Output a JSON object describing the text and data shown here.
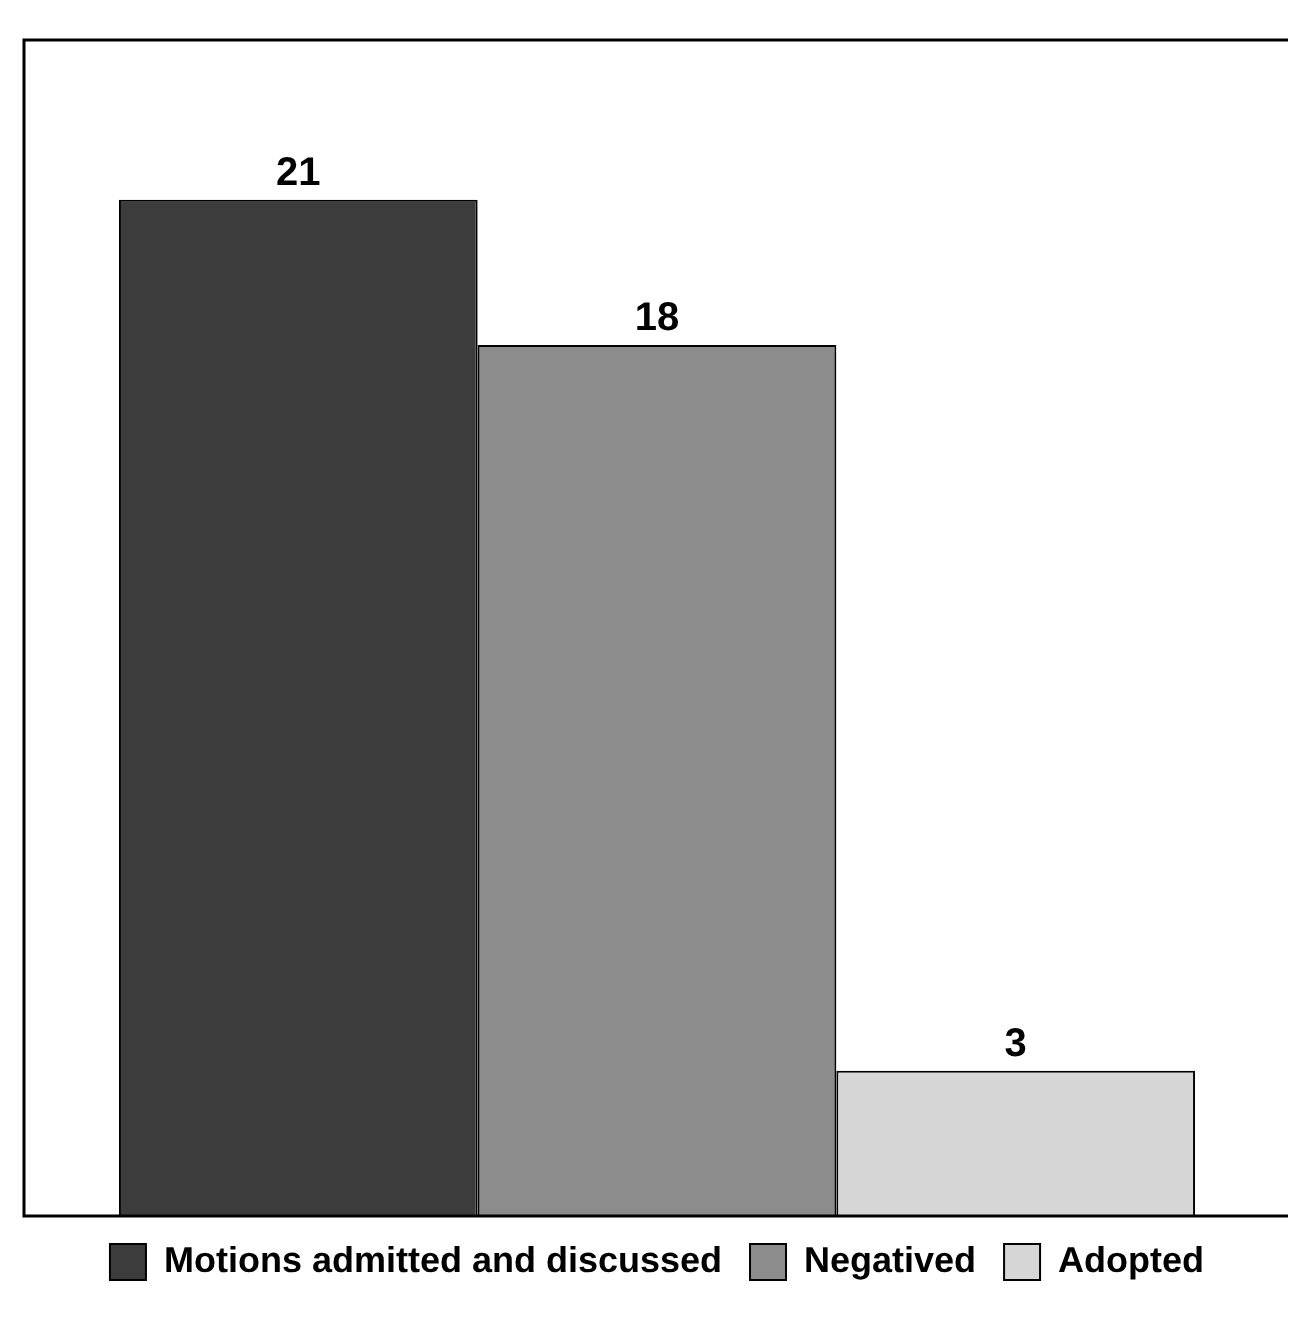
{
  "chart_data": {
    "type": "bar",
    "categories": [
      null
    ],
    "series": [
      {
        "name": "Motions admitted and discussed",
        "color": "#3c3c3c",
        "values": [
          21
        ]
      },
      {
        "name": "Negatived",
        "color": "#8c8c8c",
        "values": [
          18
        ]
      },
      {
        "name": "Adopted",
        "color": "#d6d6d6",
        "values": [
          3
        ]
      }
    ],
    "ylim": [
      0,
      24.3
    ],
    "tick_labels": false,
    "data_labels": true,
    "legend": "bottom",
    "grid": false
  }
}
